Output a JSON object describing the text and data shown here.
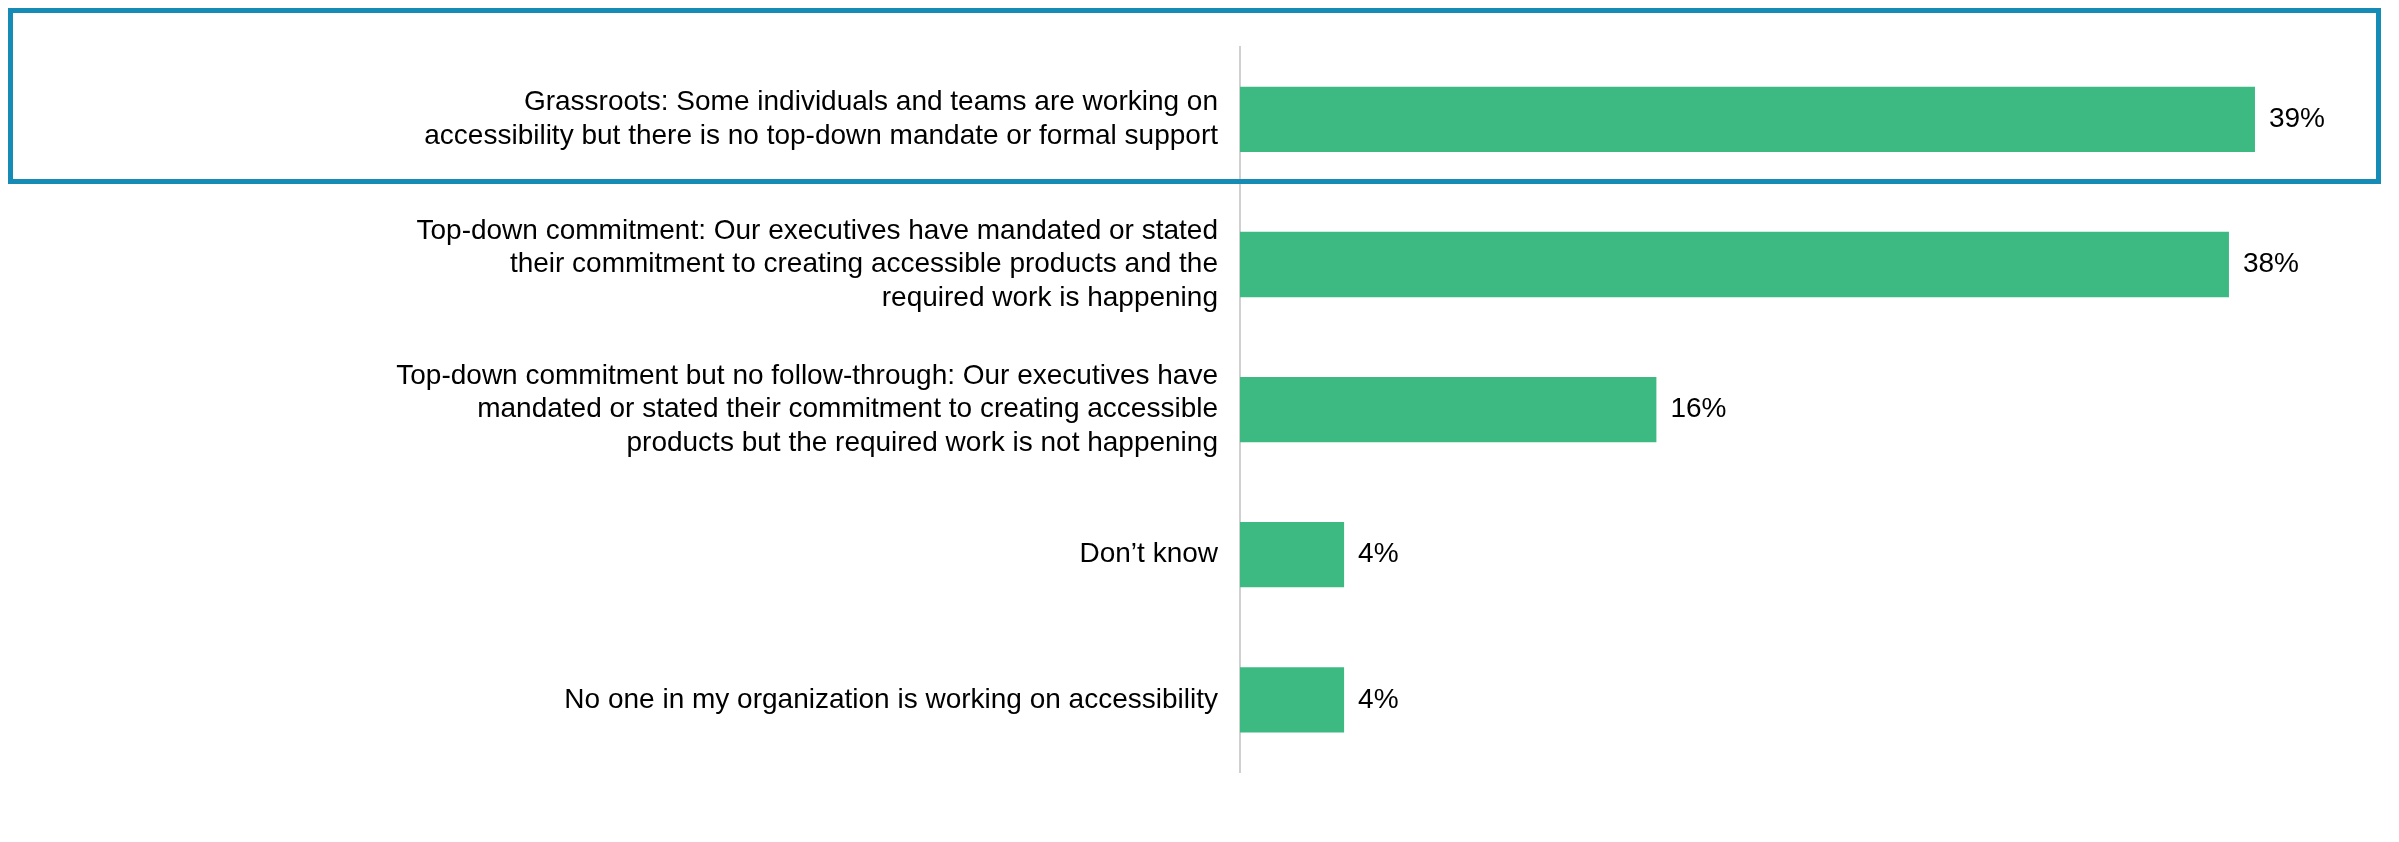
{
  "chart_data": {
    "type": "bar",
    "orientation": "horizontal",
    "categories": [
      "Grassroots: Some individuals and teams are working on accessibility but there is no top-down mandate or formal support",
      "Top-down commitment: Our executives have mandated or stated their commitment to creating accessible products and the required work is happening",
      "Top-down commitment but no follow-through: Our executives have mandated or stated their commitment to creating accessible products but the required work is not happening",
      "Don’t know",
      "No one in my organization is working on accessibility"
    ],
    "values": [
      39,
      38,
      16,
      4,
      4
    ],
    "value_labels": [
      "39%",
      "38%",
      "16%",
      "4%",
      "4%"
    ],
    "color": "#3dba82",
    "legend": false
  }
}
